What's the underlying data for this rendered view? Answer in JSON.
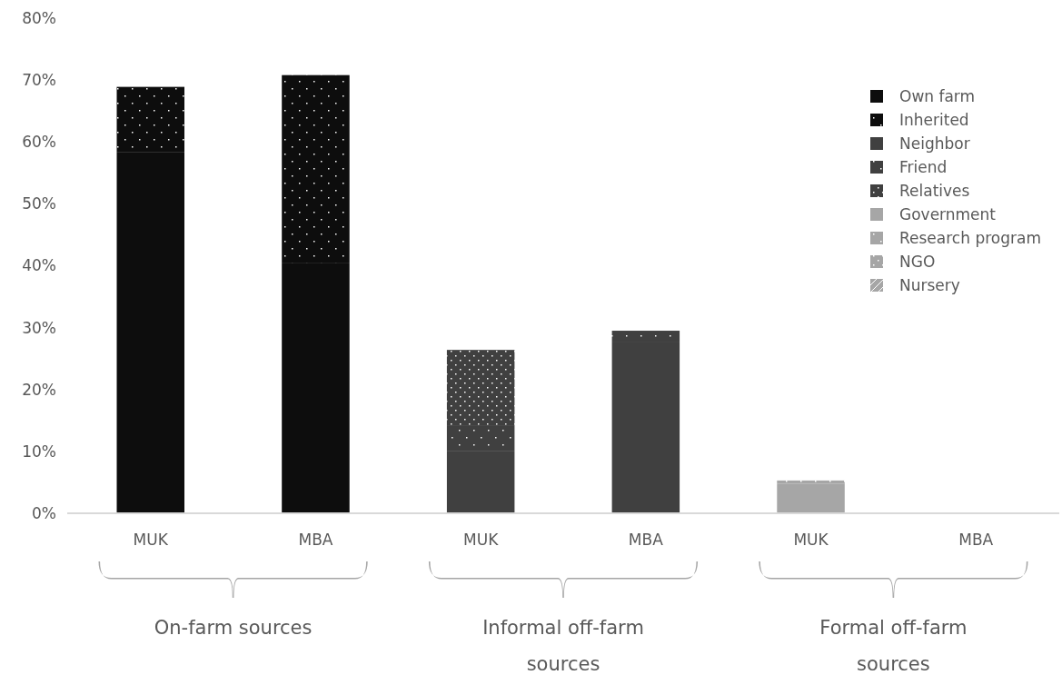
{
  "chart_data": {
    "type": "bar",
    "stacked": true,
    "categories": [
      "MUK",
      "MBA",
      "MUK",
      "MBA",
      "MUK",
      "MBA"
    ],
    "series": [
      {
        "name": "Own farm",
        "color": "#0d0d0d",
        "values": [
          58.3,
          40.5,
          null,
          null,
          null,
          null
        ]
      },
      {
        "name": "Inherited",
        "color": "#0d0d0d",
        "values": [
          10.6,
          30.3,
          null,
          null,
          null,
          null
        ]
      },
      {
        "name": "Neighbor",
        "color": "#404040",
        "values": [
          null,
          null,
          10.0,
          27.6,
          null,
          null
        ]
      },
      {
        "name": "Friend",
        "color": "#404040",
        "values": [
          null,
          null,
          4.1,
          1.9,
          null,
          null
        ]
      },
      {
        "name": "Relatives",
        "color": "#404040",
        "values": [
          null,
          null,
          12.3,
          null,
          null,
          null
        ]
      },
      {
        "name": "Government",
        "color": "#a6a6a6",
        "values": [
          null,
          null,
          null,
          null,
          4.8,
          null
        ]
      },
      {
        "name": "Research program",
        "color": "#a6a6a6",
        "values": [
          null,
          null,
          null,
          null,
          0.5,
          null
        ]
      },
      {
        "name": "NGO",
        "color": "#a6a6a6",
        "values": [
          null,
          null,
          null,
          null,
          null,
          null
        ]
      },
      {
        "name": "Nursery",
        "color": "#a6a6a6",
        "values": [
          null,
          null,
          null,
          null,
          null,
          null
        ]
      }
    ],
    "ylim": [
      0,
      80
    ],
    "yticks": [
      {
        "value": 0,
        "label": "0%"
      },
      {
        "value": 10,
        "label": "10%"
      },
      {
        "value": 20,
        "label": "20%"
      },
      {
        "value": 30,
        "label": "30%"
      },
      {
        "value": 40,
        "label": "40%"
      },
      {
        "value": 50,
        "label": "50%"
      },
      {
        "value": 60,
        "label": "60%"
      },
      {
        "value": 70,
        "label": "70%"
      },
      {
        "value": 80,
        "label": "80%"
      }
    ],
    "annotations": [
      "On-farm sources",
      "Informal off-farm sources",
      "Formal off-farm sources"
    ],
    "legend": "top right",
    "grid": false
  }
}
